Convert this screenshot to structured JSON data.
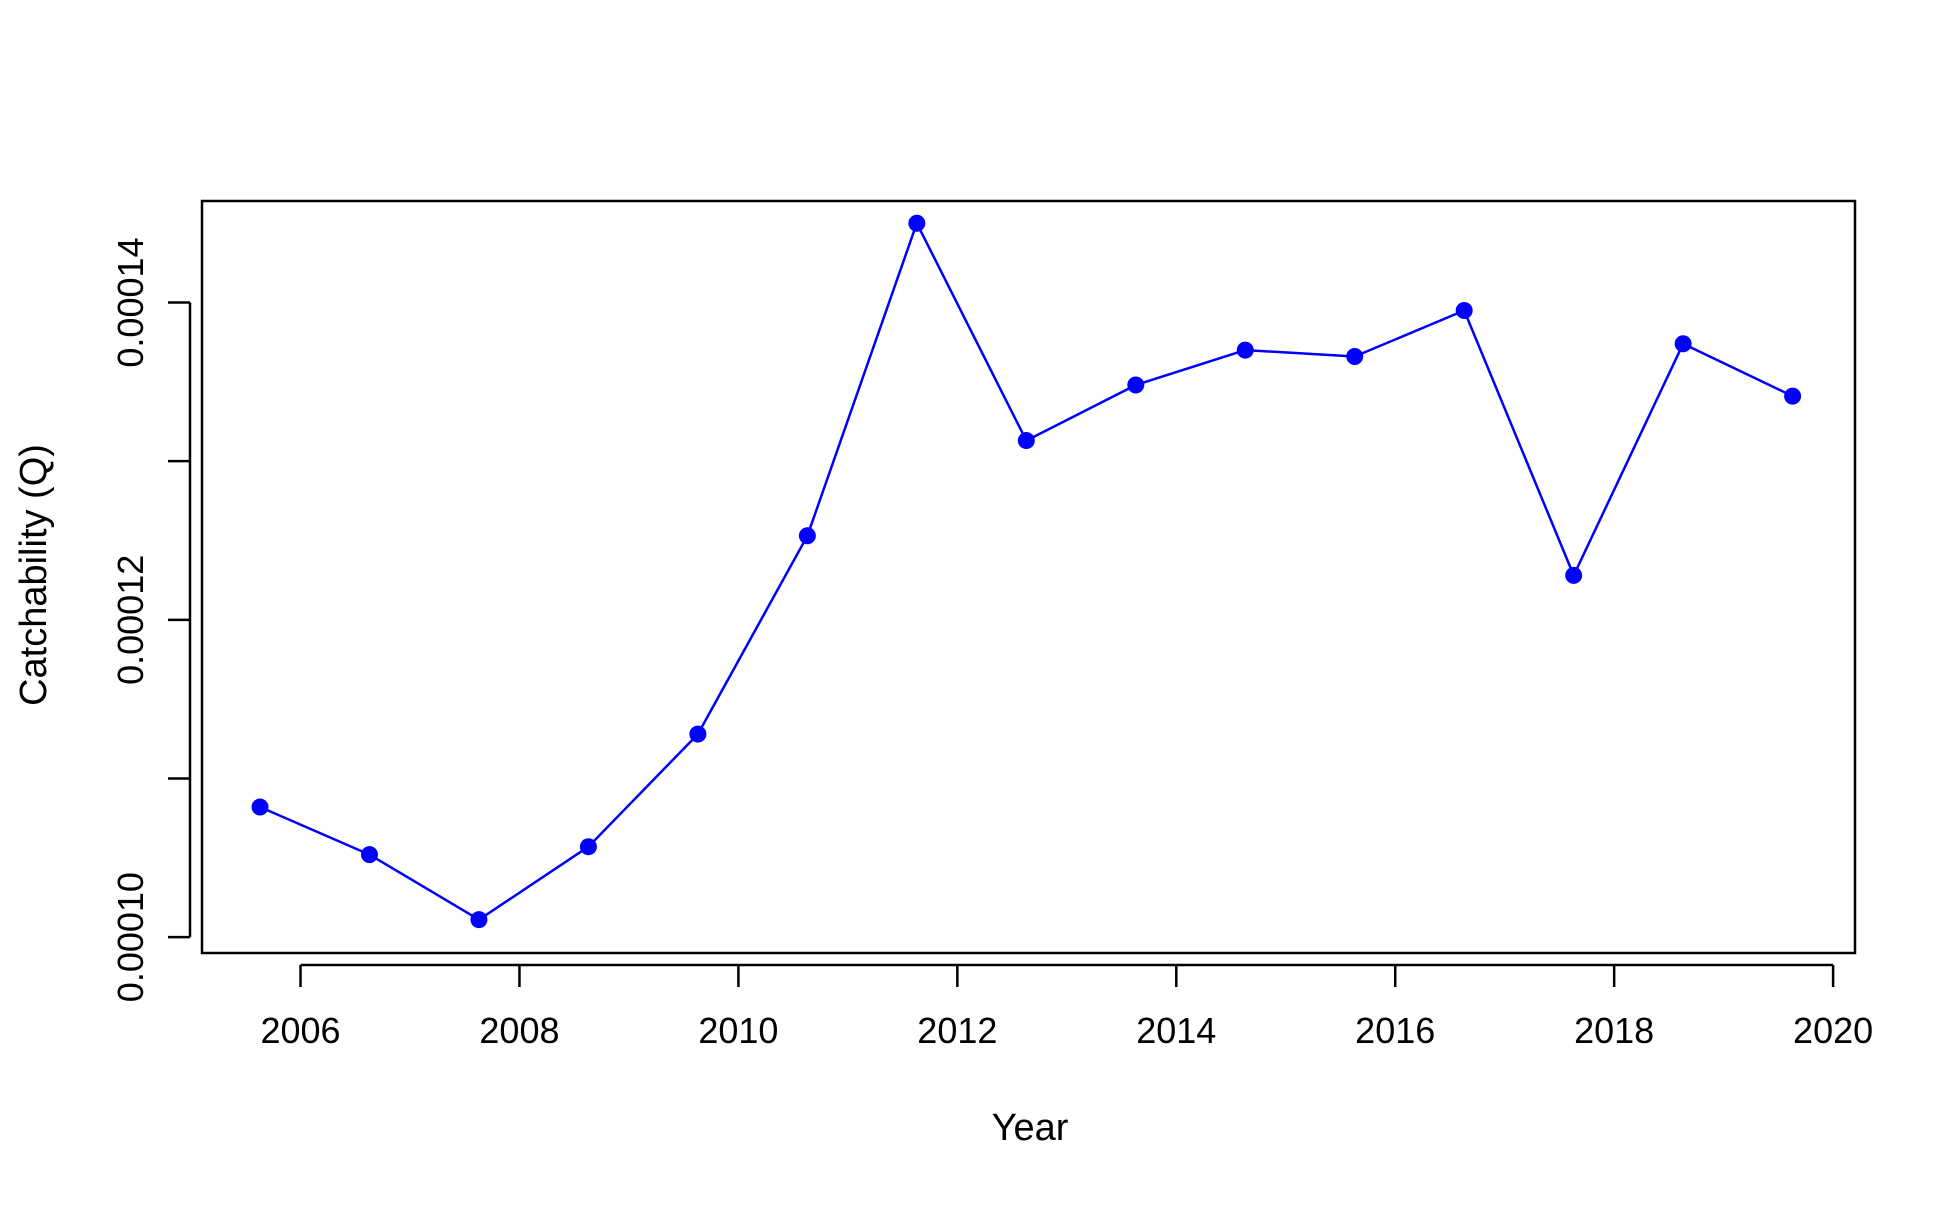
{
  "chart_data": {
    "type": "line",
    "xlabel": "Year",
    "ylabel": "Catchability (Q)",
    "x_ticks": [
      2006,
      2008,
      2010,
      2012,
      2014,
      2016,
      2018,
      2020
    ],
    "y_ticks": [
      0.0001,
      0.00011,
      0.00012,
      0.00013,
      0.00014
    ],
    "y_tick_labels": [
      "0.00010",
      "",
      "0.00012",
      "",
      "0.00014"
    ],
    "xlim": [
      2005.1,
      2020.2
    ],
    "ylim": [
      9.9e-05,
      0.0001464
    ],
    "grid": false,
    "series": [
      {
        "color": "#0000ff",
        "marker": "filled-circle",
        "x": [
          2005.63,
          2006.63,
          2007.63,
          2008.63,
          2009.63,
          2010.63,
          2011.63,
          2012.63,
          2013.63,
          2014.63,
          2015.63,
          2016.63,
          2017.63,
          2018.63,
          2019.63
        ],
        "y": [
          0.0001082,
          0.0001052,
          0.0001011,
          0.0001057,
          0.0001128,
          0.0001253,
          0.000145,
          0.0001313,
          0.0001348,
          0.000137,
          0.0001366,
          0.0001395,
          0.0001228,
          0.0001374,
          0.0001341
        ]
      }
    ]
  }
}
